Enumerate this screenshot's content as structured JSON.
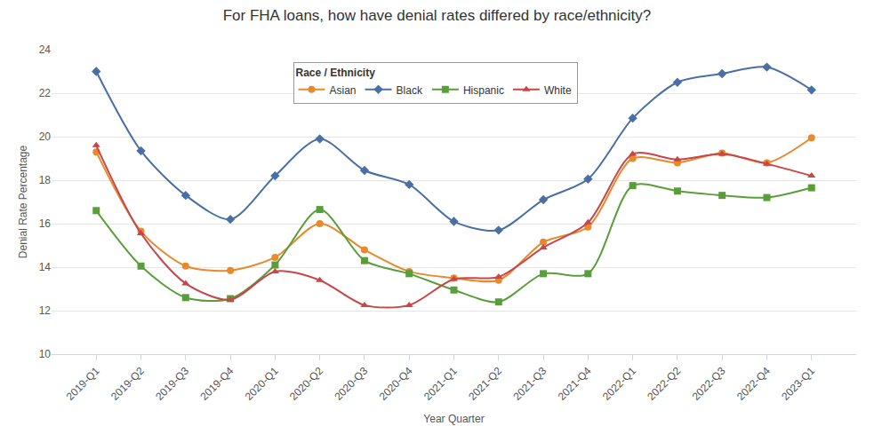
{
  "chart_data": {
    "type": "line",
    "title": "For FHA loans, how have denial rates differed by race/ethnicity?",
    "x_label": "Year Quarter",
    "y_label": "Denial Rate Percentage",
    "legend_title": "Race / Ethnicity",
    "legend": "top",
    "grid": true,
    "categories": [
      "2019-Q1",
      "2019-Q2",
      "2019-Q3",
      "2019-Q4",
      "2020-Q1",
      "2020-Q2",
      "2020-Q3",
      "2020-Q4",
      "2021-Q1",
      "2021-Q2",
      "2021-Q3",
      "2021-Q4",
      "2022-Q1",
      "2022-Q2",
      "2022-Q3",
      "2022-Q4",
      "2023-Q1"
    ],
    "ylim": [
      10,
      24
    ],
    "yticks": [
      10,
      12,
      14,
      16,
      18,
      20,
      22,
      24
    ],
    "series": [
      {
        "name": "Asian",
        "color": "#e8892b",
        "marker": "circle",
        "values": [
          19.3,
          15.65,
          14.05,
          13.85,
          14.45,
          16.0,
          14.8,
          13.8,
          13.5,
          13.4,
          15.15,
          15.85,
          19.0,
          18.8,
          19.25,
          18.8,
          19.95
        ]
      },
      {
        "name": "Black",
        "color": "#4a6fa5",
        "marker": "diamond",
        "values": [
          23.0,
          19.35,
          17.3,
          16.2,
          18.2,
          19.9,
          18.45,
          17.8,
          16.1,
          15.7,
          17.1,
          18.05,
          20.85,
          22.5,
          22.9,
          23.2,
          22.15
        ]
      },
      {
        "name": "Hispanic",
        "color": "#5a9e3a",
        "marker": "square",
        "values": [
          16.6,
          14.05,
          12.6,
          12.55,
          14.1,
          16.65,
          14.3,
          13.7,
          12.95,
          12.4,
          13.7,
          13.7,
          17.75,
          17.5,
          17.3,
          17.2,
          17.65
        ]
      },
      {
        "name": "White",
        "color": "#c9454a",
        "marker": "triangle-up",
        "values": [
          19.6,
          15.55,
          13.25,
          12.5,
          13.8,
          13.4,
          12.25,
          12.25,
          13.45,
          13.55,
          14.9,
          16.05,
          19.2,
          18.95,
          19.2,
          18.75,
          18.2
        ]
      }
    ]
  }
}
